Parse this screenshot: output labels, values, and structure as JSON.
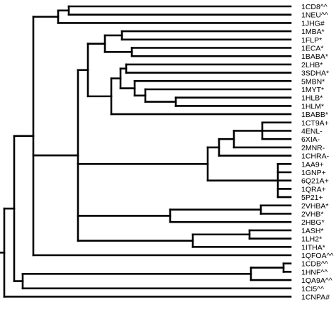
{
  "leaves": [
    "1CD8^^",
    "1NEU^^",
    "1JHG#",
    "1MBA*",
    "1FLP*",
    "1ECA*",
    "1BABA*",
    "2LHB*",
    "3SDHA*",
    "5MBN*",
    "1MYT*",
    "1HLB*",
    "1HLM*",
    "1BABB*",
    "1CT9A+",
    "4ENL-",
    "6XIA-",
    "2MNR-",
    "1CHRA-",
    "1AA9+",
    "1GNP+",
    "6Q21A+",
    "1QRA+",
    "5P21+",
    "2VHBA*",
    "2VHB*",
    "2HBG*",
    "1ASH*",
    "1LH2*",
    "1ITHA*",
    "1QFOA^^",
    "1CDB^^",
    "1HNF^^",
    "1QA9A^^",
    "1CI5^^",
    "1CNPA#"
  ]
}
